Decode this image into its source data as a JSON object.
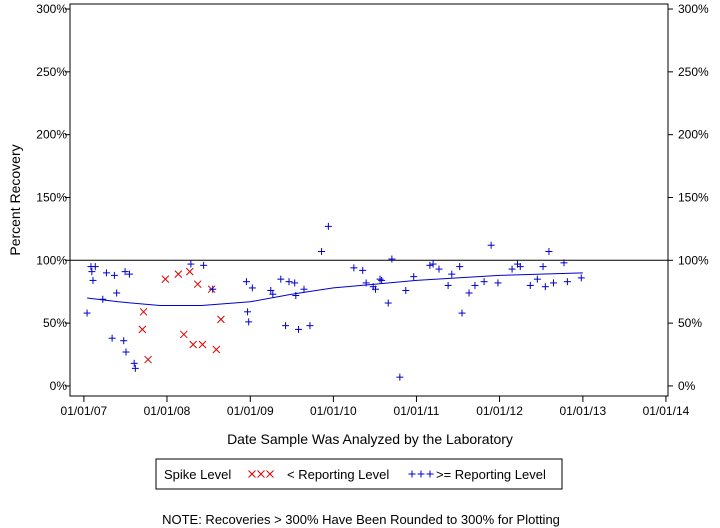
{
  "chart_data": {
    "type": "scatter",
    "xlabel": "Date Sample Was Analyzed by the Laboratory",
    "ylabel": "Percent Recovery",
    "x_ticks": [
      "01/01/07",
      "01/01/08",
      "01/01/09",
      "01/01/10",
      "01/01/11",
      "01/01/12",
      "01/01/13",
      "01/01/14"
    ],
    "y_ticks": [
      "0%",
      "50%",
      "100%",
      "150%",
      "200%",
      "250%",
      "300%"
    ],
    "y_tick_values": [
      0,
      50,
      100,
      150,
      200,
      250,
      300
    ],
    "xlim": [
      "2006-11-01",
      "2014-01-10"
    ],
    "ylim": [
      -8,
      304
    ],
    "reference_line": 100,
    "grid": false,
    "legend": {
      "title": "Spike Level",
      "position": "bottom-center",
      "entries": [
        {
          "marker": "x",
          "label": "< Reporting Level",
          "color": "#dd0000"
        },
        {
          "marker": "+",
          "label": ">= Reporting Level",
          "color": "#0000cc"
        }
      ]
    },
    "note": "NOTE: Recoveries > 300% Have Been Rounded to 300% for Plotting",
    "series": [
      {
        "marker": "x",
        "color": "#dd0000",
        "points": [
          {
            "x": "2007-09-20",
            "y": 59
          },
          {
            "x": "2007-09-15",
            "y": 45
          },
          {
            "x": "2007-10-10",
            "y": 21
          },
          {
            "x": "2007-12-25",
            "y": 85
          },
          {
            "x": "2008-02-20",
            "y": 89
          },
          {
            "x": "2008-03-15",
            "y": 41
          },
          {
            "x": "2008-04-10",
            "y": 91
          },
          {
            "x": "2008-04-25",
            "y": 33
          },
          {
            "x": "2008-05-15",
            "y": 81
          },
          {
            "x": "2008-06-05",
            "y": 33
          },
          {
            "x": "2008-07-15",
            "y": 77
          },
          {
            "x": "2008-08-05",
            "y": 29
          },
          {
            "x": "2008-08-25",
            "y": 53
          }
        ]
      },
      {
        "marker": "+",
        "color": "#0000cc",
        "points": [
          {
            "x": "2007-01-15",
            "y": 58
          },
          {
            "x": "2007-02-01",
            "y": 95
          },
          {
            "x": "2007-02-05",
            "y": 91
          },
          {
            "x": "2007-02-10",
            "y": 84
          },
          {
            "x": "2007-02-20",
            "y": 95
          },
          {
            "x": "2007-03-25",
            "y": 69
          },
          {
            "x": "2007-04-10",
            "y": 90
          },
          {
            "x": "2007-05-05",
            "y": 38
          },
          {
            "x": "2007-05-15",
            "y": 88
          },
          {
            "x": "2007-05-25",
            "y": 74
          },
          {
            "x": "2007-06-25",
            "y": 36
          },
          {
            "x": "2007-07-01",
            "y": 91
          },
          {
            "x": "2007-07-05",
            "y": 27
          },
          {
            "x": "2007-07-20",
            "y": 89
          },
          {
            "x": "2007-08-10",
            "y": 18
          },
          {
            "x": "2007-08-15",
            "y": 14
          },
          {
            "x": "2008-04-15",
            "y": 97
          },
          {
            "x": "2008-06-10",
            "y": 96
          },
          {
            "x": "2008-07-20",
            "y": 77
          },
          {
            "x": "2008-12-15",
            "y": 83
          },
          {
            "x": "2008-12-20",
            "y": 59
          },
          {
            "x": "2008-12-25",
            "y": 51
          },
          {
            "x": "2009-01-10",
            "y": 78
          },
          {
            "x": "2009-04-01",
            "y": 76
          },
          {
            "x": "2009-04-10",
            "y": 73
          },
          {
            "x": "2009-05-15",
            "y": 85
          },
          {
            "x": "2009-06-05",
            "y": 48
          },
          {
            "x": "2009-06-20",
            "y": 83
          },
          {
            "x": "2009-07-15",
            "y": 82
          },
          {
            "x": "2009-07-20",
            "y": 72
          },
          {
            "x": "2009-08-01",
            "y": 45
          },
          {
            "x": "2009-08-25",
            "y": 77
          },
          {
            "x": "2009-09-20",
            "y": 48
          },
          {
            "x": "2009-11-10",
            "y": 107
          },
          {
            "x": "2009-12-10",
            "y": 127
          },
          {
            "x": "2010-04-01",
            "y": 94
          },
          {
            "x": "2010-05-10",
            "y": 92
          },
          {
            "x": "2010-05-25",
            "y": 82
          },
          {
            "x": "2010-06-25",
            "y": 79
          },
          {
            "x": "2010-07-05",
            "y": 77
          },
          {
            "x": "2010-07-25",
            "y": 85
          },
          {
            "x": "2010-08-01",
            "y": 84
          },
          {
            "x": "2010-08-30",
            "y": 66
          },
          {
            "x": "2010-09-15",
            "y": 101
          },
          {
            "x": "2010-10-20",
            "y": 7
          },
          {
            "x": "2010-11-15",
            "y": 76
          },
          {
            "x": "2010-12-20",
            "y": 87
          },
          {
            "x": "2011-03-01",
            "y": 96
          },
          {
            "x": "2011-03-15",
            "y": 97
          },
          {
            "x": "2011-04-10",
            "y": 93
          },
          {
            "x": "2011-05-20",
            "y": 80
          },
          {
            "x": "2011-06-05",
            "y": 89
          },
          {
            "x": "2011-07-10",
            "y": 95
          },
          {
            "x": "2011-07-20",
            "y": 58
          },
          {
            "x": "2011-08-20",
            "y": 74
          },
          {
            "x": "2011-09-15",
            "y": 80
          },
          {
            "x": "2011-10-25",
            "y": 83
          },
          {
            "x": "2011-11-25",
            "y": 112
          },
          {
            "x": "2011-12-25",
            "y": 82
          },
          {
            "x": "2012-02-25",
            "y": 93
          },
          {
            "x": "2012-03-20",
            "y": 97
          },
          {
            "x": "2012-04-01",
            "y": 95
          },
          {
            "x": "2012-05-15",
            "y": 80
          },
          {
            "x": "2012-06-15",
            "y": 85
          },
          {
            "x": "2012-07-10",
            "y": 95
          },
          {
            "x": "2012-07-20",
            "y": 79
          },
          {
            "x": "2012-08-05",
            "y": 107
          },
          {
            "x": "2012-08-25",
            "y": 82
          },
          {
            "x": "2012-10-10",
            "y": 98
          },
          {
            "x": "2012-10-25",
            "y": 83
          },
          {
            "x": "2012-12-25",
            "y": 86
          }
        ]
      }
    ],
    "trend_line": {
      "color": "#0000cc",
      "points": [
        {
          "x": "2007-01-15",
          "y": 70
        },
        {
          "x": "2007-06-01",
          "y": 67
        },
        {
          "x": "2007-12-01",
          "y": 64
        },
        {
          "x": "2008-06-01",
          "y": 64
        },
        {
          "x": "2009-01-01",
          "y": 67
        },
        {
          "x": "2009-07-01",
          "y": 73
        },
        {
          "x": "2010-01-01",
          "y": 78
        },
        {
          "x": "2010-07-01",
          "y": 81
        },
        {
          "x": "2011-01-01",
          "y": 84
        },
        {
          "x": "2011-07-01",
          "y": 86
        },
        {
          "x": "2012-01-01",
          "y": 88
        },
        {
          "x": "2012-07-01",
          "y": 89
        },
        {
          "x": "2013-01-01",
          "y": 90
        }
      ]
    }
  }
}
